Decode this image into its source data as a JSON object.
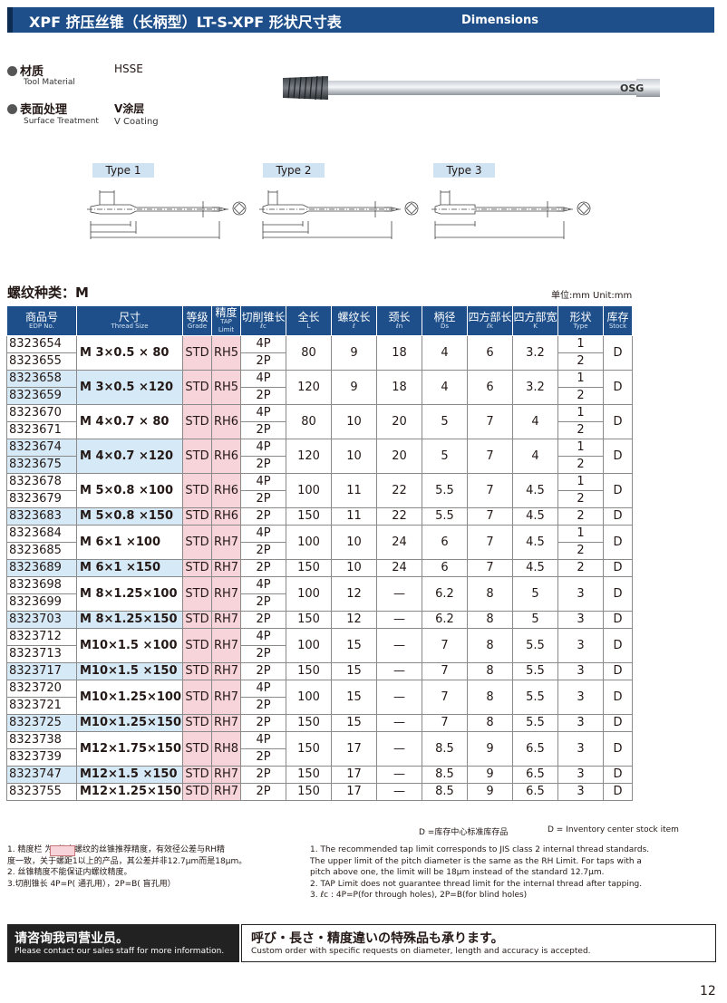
{
  "header": {
    "title": "XPF 挤压丝锥（长柄型）LT-S-XPF 形状尺寸表",
    "title_en": "Dimensions"
  },
  "specs": [
    {
      "label": "材质",
      "label_en": "Tool Material",
      "value": "HSSE",
      "value_en": ""
    },
    {
      "label": "表面处理",
      "label_en": "Surface Treatment",
      "value": "V涂层",
      "value_en": "V Coating"
    }
  ],
  "tool_marking": "OSG",
  "types": [
    {
      "label": "Type 1"
    },
    {
      "label": "Type 2"
    },
    {
      "label": "Type 3"
    }
  ],
  "section_title": "螺纹种类：M",
  "unit": "单位:mm   Unit:mm",
  "table": {
    "headers": [
      {
        "cn": "商品号",
        "en": "EDP No."
      },
      {
        "cn": "尺寸",
        "en": "Thread Size"
      },
      {
        "cn": "等级",
        "en": "Grade"
      },
      {
        "cn": "精度",
        "en": "TAP Limit"
      },
      {
        "cn": "切削锥长",
        "en": "ℓc"
      },
      {
        "cn": "全长",
        "en": "L"
      },
      {
        "cn": "螺纹长",
        "en": "ℓ"
      },
      {
        "cn": "颈长",
        "en": "ℓn"
      },
      {
        "cn": "柄径",
        "en": "Ds"
      },
      {
        "cn": "四方部长",
        "en": "ℓk"
      },
      {
        "cn": "四方部宽",
        "en": "K"
      },
      {
        "cn": "形状",
        "en": "Type"
      },
      {
        "cn": "库存",
        "en": "Stock"
      }
    ],
    "groups": [
      {
        "edps": [
          "8323654",
          "8323655"
        ],
        "size": "M 3×0.5 × 80",
        "grade": "STD",
        "limit": "RH5",
        "lc": [
          "4P",
          "2P"
        ],
        "L": "80",
        "l": "9",
        "ln": "18",
        "ds": "4",
        "lk": "6",
        "k": "3.2",
        "type": [
          "1",
          "2"
        ],
        "stock": "D",
        "hl": false
      },
      {
        "edps": [
          "8323658",
          "8323659"
        ],
        "size": "M 3×0.5 ×120",
        "grade": "STD",
        "limit": "RH5",
        "lc": [
          "4P",
          "2P"
        ],
        "L": "120",
        "l": "9",
        "ln": "18",
        "ds": "4",
        "lk": "6",
        "k": "3.2",
        "type": [
          "1",
          "2"
        ],
        "stock": "D",
        "hl": true
      },
      {
        "edps": [
          "8323670",
          "8323671"
        ],
        "size": "M 4×0.7 × 80",
        "grade": "STD",
        "limit": "RH6",
        "lc": [
          "4P",
          "2P"
        ],
        "L": "80",
        "l": "10",
        "ln": "20",
        "ds": "5",
        "lk": "7",
        "k": "4",
        "type": [
          "1",
          "2"
        ],
        "stock": "D",
        "hl": false
      },
      {
        "edps": [
          "8323674",
          "8323675"
        ],
        "size": "M 4×0.7 ×120",
        "grade": "STD",
        "limit": "RH6",
        "lc": [
          "4P",
          "2P"
        ],
        "L": "120",
        "l": "10",
        "ln": "20",
        "ds": "5",
        "lk": "7",
        "k": "4",
        "type": [
          "1",
          "2"
        ],
        "stock": "D",
        "hl": true
      },
      {
        "edps": [
          "8323678",
          "8323679"
        ],
        "size": "M 5×0.8 ×100",
        "grade": "STD",
        "limit": "RH6",
        "lc": [
          "4P",
          "2P"
        ],
        "L": "100",
        "l": "11",
        "ln": "22",
        "ds": "5.5",
        "lk": "7",
        "k": "4.5",
        "type": [
          "1",
          "2"
        ],
        "stock": "D",
        "hl": false
      },
      {
        "edps": [
          "8323683"
        ],
        "size": "M 5×0.8 ×150",
        "grade": "STD",
        "limit": "RH6",
        "lc": [
          "2P"
        ],
        "L": "150",
        "l": "11",
        "ln": "22",
        "ds": "5.5",
        "lk": "7",
        "k": "4.5",
        "type": [
          "2"
        ],
        "stock": "D",
        "hl": true
      },
      {
        "edps": [
          "8323684",
          "8323685"
        ],
        "size": "M 6×1 ×100",
        "grade": "STD",
        "limit": "RH7",
        "lc": [
          "4P",
          "2P"
        ],
        "L": "100",
        "l": "10",
        "ln": "24",
        "ds": "6",
        "lk": "7",
        "k": "4.5",
        "type": [
          "1",
          "2"
        ],
        "stock": "D",
        "hl": false
      },
      {
        "edps": [
          "8323689"
        ],
        "size": "M 6×1 ×150",
        "grade": "STD",
        "limit": "RH7",
        "lc": [
          "2P"
        ],
        "L": "150",
        "l": "10",
        "ln": "24",
        "ds": "6",
        "lk": "7",
        "k": "4.5",
        "type": [
          "2"
        ],
        "stock": "D",
        "hl": true
      },
      {
        "edps": [
          "8323698",
          "8323699"
        ],
        "size": "M 8×1.25×100",
        "grade": "STD",
        "limit": "RH7",
        "lc": [
          "4P",
          "2P"
        ],
        "L": "100",
        "l": "12",
        "ln": "—",
        "ds": "6.2",
        "lk": "8",
        "k": "5",
        "type": [
          "3"
        ],
        "stock": "D",
        "hl": false
      },
      {
        "edps": [
          "8323703"
        ],
        "size": "M 8×1.25×150",
        "grade": "STD",
        "limit": "RH7",
        "lc": [
          "2P"
        ],
        "L": "150",
        "l": "12",
        "ln": "—",
        "ds": "6.2",
        "lk": "8",
        "k": "5",
        "type": [
          "3"
        ],
        "stock": "D",
        "hl": true
      },
      {
        "edps": [
          "8323712",
          "8323713"
        ],
        "size": "M10×1.5 ×100",
        "grade": "STD",
        "limit": "RH7",
        "lc": [
          "4P",
          "2P"
        ],
        "L": "100",
        "l": "15",
        "ln": "—",
        "ds": "7",
        "lk": "8",
        "k": "5.5",
        "type": [
          "3"
        ],
        "stock": "D",
        "hl": false
      },
      {
        "edps": [
          "8323717"
        ],
        "size": "M10×1.5 ×150",
        "grade": "STD",
        "limit": "RH7",
        "lc": [
          "2P"
        ],
        "L": "150",
        "l": "15",
        "ln": "—",
        "ds": "7",
        "lk": "8",
        "k": "5.5",
        "type": [
          "3"
        ],
        "stock": "D",
        "hl": true
      },
      {
        "edps": [
          "8323720",
          "8323721"
        ],
        "size": "M10×1.25×100",
        "grade": "STD",
        "limit": "RH7",
        "lc": [
          "4P",
          "2P"
        ],
        "L": "100",
        "l": "15",
        "ln": "—",
        "ds": "7",
        "lk": "8",
        "k": "5.5",
        "type": [
          "3"
        ],
        "stock": "D",
        "hl": false
      },
      {
        "edps": [
          "8323725"
        ],
        "size": "M10×1.25×150",
        "grade": "STD",
        "limit": "RH7",
        "lc": [
          "2P"
        ],
        "L": "150",
        "l": "15",
        "ln": "—",
        "ds": "7",
        "lk": "8",
        "k": "5.5",
        "type": [
          "3"
        ],
        "stock": "D",
        "hl": true
      },
      {
        "edps": [
          "8323738",
          "8323739"
        ],
        "size": "M12×1.75×150",
        "grade": "STD",
        "limit": "RH8",
        "lc": [
          "4P",
          "2P"
        ],
        "L": "150",
        "l": "17",
        "ln": "—",
        "ds": "8.5",
        "lk": "9",
        "k": "6.5",
        "type": [
          "3"
        ],
        "stock": "D",
        "hl": false
      },
      {
        "edps": [
          "8323747"
        ],
        "size": "M12×1.5 ×150",
        "grade": "STD",
        "limit": "RH7",
        "lc": [
          "2P"
        ],
        "L": "150",
        "l": "17",
        "ln": "—",
        "ds": "8.5",
        "lk": "9",
        "k": "6.5",
        "type": [
          "3"
        ],
        "stock": "D",
        "hl": true
      },
      {
        "edps": [
          "8323755"
        ],
        "size": "M12×1.25×150",
        "grade": "STD",
        "limit": "RH7",
        "lc": [
          "2P"
        ],
        "L": "150",
        "l": "17",
        "ln": "—",
        "ds": "8.5",
        "lk": "9",
        "k": "6.5",
        "type": [
          "3"
        ],
        "stock": "D",
        "hl": false
      }
    ]
  },
  "stock_note_cn": "D =库存中心标准库存品",
  "stock_note_en": "D = Inventory center stock item",
  "notes_cn": [
    "1. 精度栏        为2级内螺纹的丝锥推荐精度，有效径公差与RH精",
    "度一致，关于螺距1以上的产品，其公差并非12.7μm而是18μm。",
    "2. 丝锥精度不能保证内螺纹精度。",
    "3.切削锥长 4P=P( 通孔用），2P=B( 盲孔用）"
  ],
  "notes_en": [
    "1. The recommended tap limit corresponds to JIS class 2 internal thread standards.",
    "    The upper limit of the pitch diameter is the same as the RH Limit. For taps with a",
    "    pitch above one, the limit will be 18μm instead of the standard 12.7μm.",
    "2. TAP Limit does not guarantee thread limit for the internal thread after tapping.",
    "3.  ℓc : 4P=P(for through holes), 2P=B(for blind holes)"
  ],
  "footer": {
    "left_title": "请咨询我司营业员。",
    "left_sub": "Please contact our sales staff for more information.",
    "right_title": "呼び・長さ・精度違いの特殊品も承ります。",
    "right_sub": "Custom order with specific requests on diameter, length and accuracy is accepted."
  },
  "page_number": "12",
  "colors": {
    "header_blue": "#1e4f8a",
    "highlight_blue": "#d6e9f6",
    "limit_pink": "#f6d4d9",
    "type_label_bg": "#cfe3f2"
  }
}
